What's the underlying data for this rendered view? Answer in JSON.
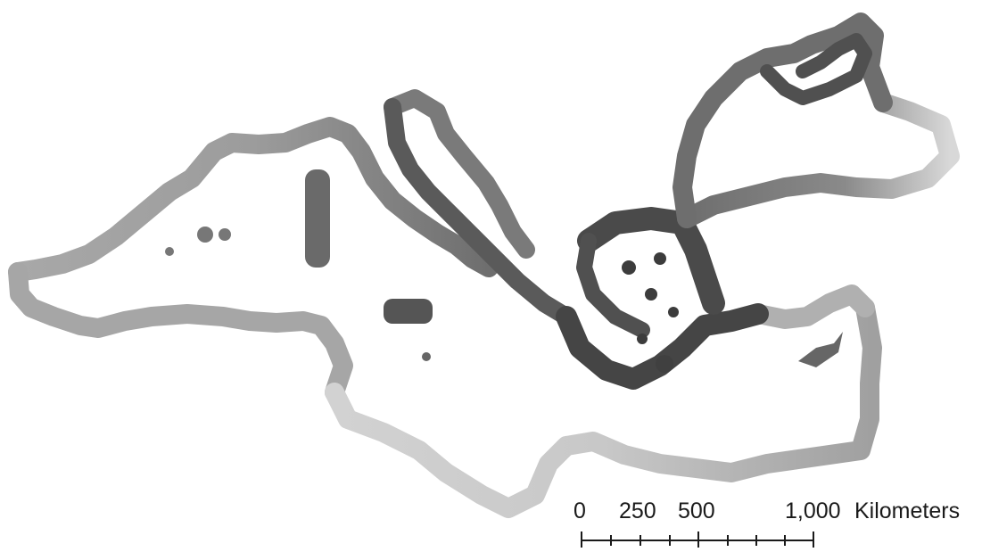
{
  "map": {
    "description_colors": {
      "light": "#d4d4d4",
      "medium": "#9a9a9a",
      "dark": "#4a4a4a",
      "darkest": "#3c3c3c"
    }
  },
  "scale_bar": {
    "labels": [
      "0",
      "250",
      "500",
      "1,000"
    ],
    "unit": "Kilometers"
  }
}
